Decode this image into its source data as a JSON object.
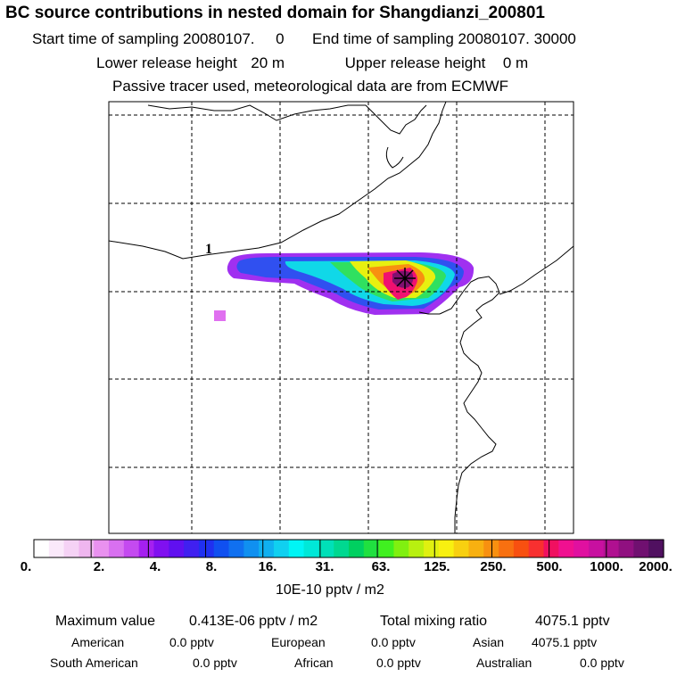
{
  "header": {
    "title": "BC  source contributions in nested domain for Shangdianzi_200801",
    "start_label": "Start time of sampling",
    "start_value": "20080107.     0",
    "end_label": "End time of sampling",
    "end_value": "20080107. 30000",
    "lower_label": "Lower release height",
    "lower_value": "20 m",
    "upper_label": "Upper release height",
    "upper_value": "0 m",
    "note": "Passive tracer used, meteorological data are from ECMWF"
  },
  "map": {
    "contour_label": "1",
    "receptor_marker": "asterisk-marker"
  },
  "colorbar": {
    "colors": [
      "#ffffff",
      "#fae9fa",
      "#f5d2f5",
      "#efb6ef",
      "#e991ef",
      "#d870f0",
      "#c44af0",
      "#a520f0",
      "#8010f0",
      "#6010f0",
      "#4020f0",
      "#2030f0",
      "#1050f0",
      "#1070f0",
      "#1090f0",
      "#10b0f0",
      "#10d0f0",
      "#00f5f5",
      "#00e8d8",
      "#00e0b8",
      "#00d890",
      "#00d060",
      "#20e040",
      "#40f020",
      "#80f010",
      "#b8f010",
      "#e0f010",
      "#f8f010",
      "#f8d010",
      "#f8b010",
      "#f89010",
      "#f87010",
      "#f85010",
      "#f83030",
      "#f01060",
      "#f01090",
      "#e010a0",
      "#c810a0",
      "#b01090",
      "#901080",
      "#701070",
      "#501060"
    ],
    "ticks": [
      "0.",
      "2.",
      "4.",
      "8.",
      "16.",
      "31.",
      "63.",
      "125.",
      "250.",
      "500.",
      "1000.",
      "2000."
    ],
    "unit": "10E-10 pptv / m2"
  },
  "summary": {
    "max_label": "Maximum value",
    "max_value": "0.413E-06 pptv / m2",
    "total_label": "Total mixing ratio",
    "total_value": "4075.1 pptv",
    "regions": [
      {
        "name": "American",
        "value": "0.0 pptv"
      },
      {
        "name": "European",
        "value": "0.0 pptv"
      },
      {
        "name": "Asian",
        "value": "4075.1 pptv"
      },
      {
        "name": "South American",
        "value": "0.0 pptv"
      },
      {
        "name": "African",
        "value": "0.0 pptv"
      },
      {
        "name": "Australian",
        "value": "0.0 pptv"
      }
    ]
  }
}
